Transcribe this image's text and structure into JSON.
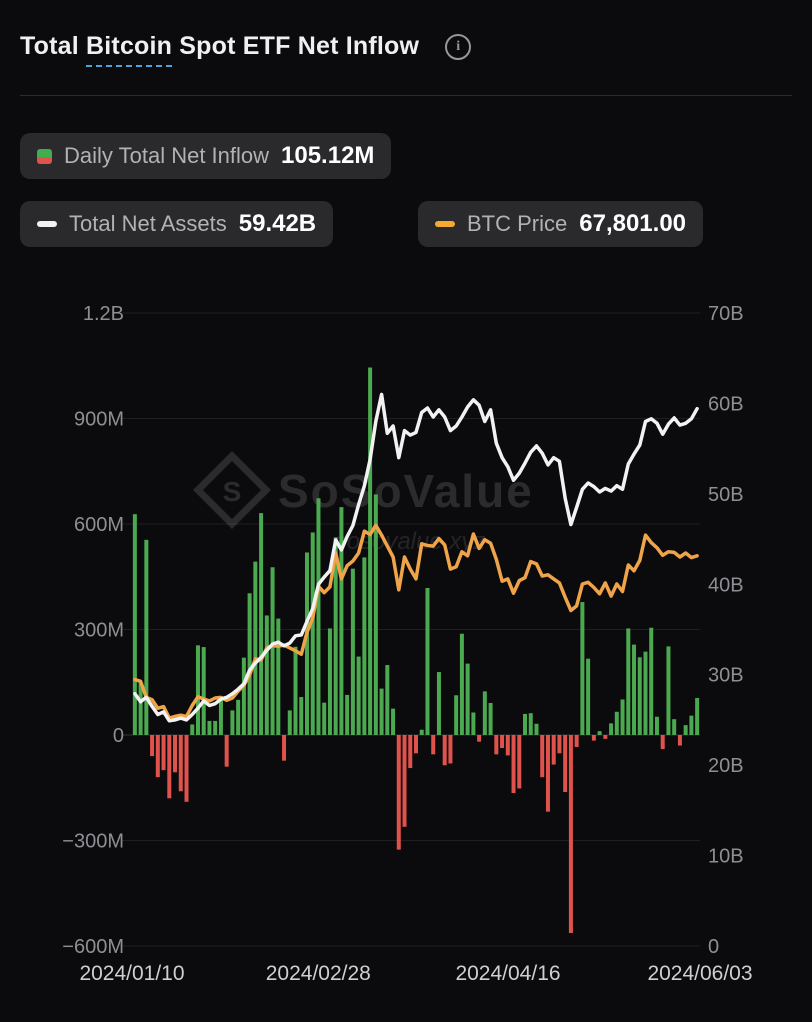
{
  "header": {
    "title_prefix": "Total ",
    "title_underlined": "Bitcoin",
    "title_suffix": " Spot ETF Net Inflow",
    "info_glyph": "i"
  },
  "legend": {
    "daily": {
      "label": "Daily Total Net Inflow",
      "value": "105.12M"
    },
    "assets": {
      "label": "Total Net Assets",
      "value": "59.42B"
    },
    "price": {
      "label": "BTC Price",
      "value": "67,801.00"
    }
  },
  "watermark": {
    "logo_letter": "S",
    "brand": "SoSoValue",
    "domain": "sosovalue.xyz"
  },
  "colors": {
    "background": "#0b0b0d",
    "badge_bg": "#2a2a2d",
    "green_bar": "#4ba94f",
    "red_bar": "#e0524c",
    "assets_line": "#f2f2f2",
    "price_line": "#f0a44a",
    "axis_label": "#8f8f93",
    "x_label": "#cfcfd3",
    "grid": "#1f1f22",
    "zero_line": "#36363a",
    "underline_accent": "#4da3dc"
  },
  "chart_data": {
    "type": "bar",
    "title": "Total Bitcoin Spot ETF Net Inflow",
    "legend_position": "top",
    "grid": "horizontal",
    "left_axis": {
      "unit": "USD",
      "range_M": [
        -600,
        1200
      ],
      "ticks": [
        {
          "label": "1.2B",
          "value_M": 1200
        },
        {
          "label": "900M",
          "value_M": 900
        },
        {
          "label": "600M",
          "value_M": 600
        },
        {
          "label": "300M",
          "value_M": 300
        },
        {
          "label": "0",
          "value_M": 0
        },
        {
          "label": "−300M",
          "value_M": -300
        },
        {
          "label": "−600M",
          "value_M": -600
        }
      ]
    },
    "right_axis": {
      "unit": "USD",
      "range_B": [
        0,
        70
      ],
      "ticks": [
        {
          "label": "70B",
          "value_B": 70
        },
        {
          "label": "60B",
          "value_B": 60
        },
        {
          "label": "50B",
          "value_B": 50
        },
        {
          "label": "40B",
          "value_B": 40
        },
        {
          "label": "30B",
          "value_B": 30
        },
        {
          "label": "20B",
          "value_B": 20
        },
        {
          "label": "10B",
          "value_B": 10
        },
        {
          "label": "0",
          "value_B": 0
        }
      ]
    },
    "btc_axis_range": [
      0,
      110000
    ],
    "x_ticks": [
      {
        "label": "2024/01/10",
        "frac": 0
      },
      {
        "label": "2024/02/28",
        "frac": 0.328
      },
      {
        "label": "2024/04/16",
        "frac": 0.662
      },
      {
        "label": "2024/06/03",
        "frac": 1
      }
    ],
    "dates": [
      "2024-01-11",
      "2024-01-12",
      "2024-01-16",
      "2024-01-17",
      "2024-01-18",
      "2024-01-19",
      "2024-01-22",
      "2024-01-23",
      "2024-01-24",
      "2024-01-25",
      "2024-01-26",
      "2024-01-29",
      "2024-01-30",
      "2024-01-31",
      "2024-02-01",
      "2024-02-02",
      "2024-02-05",
      "2024-02-06",
      "2024-02-07",
      "2024-02-08",
      "2024-02-09",
      "2024-02-12",
      "2024-02-13",
      "2024-02-14",
      "2024-02-15",
      "2024-02-16",
      "2024-02-20",
      "2024-02-21",
      "2024-02-22",
      "2024-02-23",
      "2024-02-26",
      "2024-02-27",
      "2024-02-28",
      "2024-02-29",
      "2024-03-01",
      "2024-03-04",
      "2024-03-05",
      "2024-03-06",
      "2024-03-07",
      "2024-03-08",
      "2024-03-11",
      "2024-03-12",
      "2024-03-13",
      "2024-03-14",
      "2024-03-15",
      "2024-03-18",
      "2024-03-19",
      "2024-03-20",
      "2024-03-21",
      "2024-03-22",
      "2024-03-25",
      "2024-03-26",
      "2024-03-27",
      "2024-03-28",
      "2024-04-01",
      "2024-04-02",
      "2024-04-03",
      "2024-04-04",
      "2024-04-05",
      "2024-04-08",
      "2024-04-09",
      "2024-04-10",
      "2024-04-11",
      "2024-04-12",
      "2024-04-15",
      "2024-04-16",
      "2024-04-17",
      "2024-04-18",
      "2024-04-19",
      "2024-04-22",
      "2024-04-23",
      "2024-04-24",
      "2024-04-25",
      "2024-04-26",
      "2024-04-29",
      "2024-04-30",
      "2024-05-01",
      "2024-05-02",
      "2024-05-03",
      "2024-05-06",
      "2024-05-07",
      "2024-05-08",
      "2024-05-09",
      "2024-05-10",
      "2024-05-13",
      "2024-05-14",
      "2024-05-15",
      "2024-05-16",
      "2024-05-17",
      "2024-05-20",
      "2024-05-21",
      "2024-05-22",
      "2024-05-23",
      "2024-05-24",
      "2024-05-28",
      "2024-05-29",
      "2024-05-30",
      "2024-05-31",
      "2024-06-03"
    ],
    "series": [
      {
        "name": "Daily Total Net Inflow",
        "unit": "M USD",
        "style": "bar",
        "values": [
          628,
          150,
          555,
          -60,
          -120,
          -100,
          -180,
          -106,
          -160,
          -190,
          30,
          255,
          250,
          40,
          40,
          110,
          -90,
          70,
          100,
          220,
          403,
          493,
          631,
          340,
          477,
          331,
          -73,
          70,
          251,
          108,
          519,
          576,
          673,
          92,
          303,
          562,
          648,
          114,
          473,
          223,
          505,
          1045,
          684,
          132,
          199,
          75,
          -326,
          -261,
          -94,
          -52,
          15,
          418,
          -55,
          179,
          -86,
          -81,
          113,
          288,
          203,
          64,
          -19,
          124,
          91,
          -55,
          -37,
          -58,
          -165,
          -152,
          60,
          62,
          32,
          -120,
          -218,
          -84,
          -52,
          -162,
          -563,
          -34,
          378,
          217,
          -16,
          11,
          -11,
          33,
          66,
          101,
          303,
          257,
          221,
          237,
          305,
          52,
          -40,
          252,
          45,
          -30,
          28,
          55,
          105.12
        ]
      },
      {
        "name": "Total Net Assets",
        "unit": "B USD",
        "style": "line",
        "values": [
          27.9,
          27.0,
          27.5,
          26.5,
          25.6,
          25.9,
          24.9,
          25.0,
          25.2,
          25.0,
          25.6,
          26.3,
          27.1,
          26.6,
          26.8,
          27.3,
          27.5,
          27.9,
          28.4,
          29.0,
          30.5,
          31.3,
          31.9,
          32.7,
          33.4,
          33.6,
          33.2,
          33.5,
          34.3,
          34.4,
          35.9,
          37.3,
          40.0,
          40.8,
          41.5,
          44.9,
          43.8,
          45.3,
          46.5,
          48.8,
          50.9,
          53.8,
          58.0,
          61.0,
          56.7,
          57.5,
          54.0,
          57.0,
          56.5,
          56.8,
          59.0,
          59.5,
          58.5,
          59.3,
          58.5,
          57.0,
          57.5,
          58.5,
          59.6,
          60.4,
          59.8,
          58.0,
          59.3,
          55.6,
          54.0,
          53.0,
          51.5,
          52.3,
          53.4,
          54.6,
          55.3,
          54.5,
          53.2,
          54.0,
          53.6,
          49.5,
          46.6,
          48.5,
          50.5,
          51.2,
          50.8,
          50.2,
          50.6,
          50.3,
          50.9,
          50.5,
          53.3,
          54.4,
          55.4,
          58.0,
          58.3,
          57.8,
          56.6,
          57.7,
          58.4,
          57.6,
          57.8,
          58.3,
          59.42
        ]
      },
      {
        "name": "BTC Price",
        "unit": "USD",
        "style": "line",
        "values": [
          46300,
          46000,
          43200,
          42800,
          41300,
          41600,
          39600,
          39900,
          40100,
          39900,
          41800,
          43300,
          42900,
          42600,
          43100,
          43200,
          42700,
          43100,
          44300,
          45300,
          47100,
          49900,
          49700,
          51800,
          52200,
          52100,
          52300,
          51800,
          51300,
          50700,
          54500,
          57000,
          62500,
          61400,
          62400,
          68300,
          63800,
          66100,
          66900,
          68300,
          72100,
          71500,
          73100,
          71400,
          69500,
          67600,
          61900,
          67600,
          65500,
          63800,
          69900,
          69600,
          69500,
          70800,
          69700,
          65500,
          65900,
          68500,
          67800,
          71600,
          69100,
          70600,
          70000,
          67200,
          63400,
          63800,
          61300,
          63500,
          64000,
          66800,
          66400,
          64300,
          64500,
          63800,
          63100,
          60600,
          58300,
          59100,
          62900,
          63200,
          62300,
          61200,
          63100,
          60800,
          62900,
          61600,
          66200,
          65200,
          67000,
          71400,
          70100,
          69200,
          67900,
          68500,
          68400,
          67600,
          68300,
          67500,
          67801
        ]
      }
    ]
  }
}
